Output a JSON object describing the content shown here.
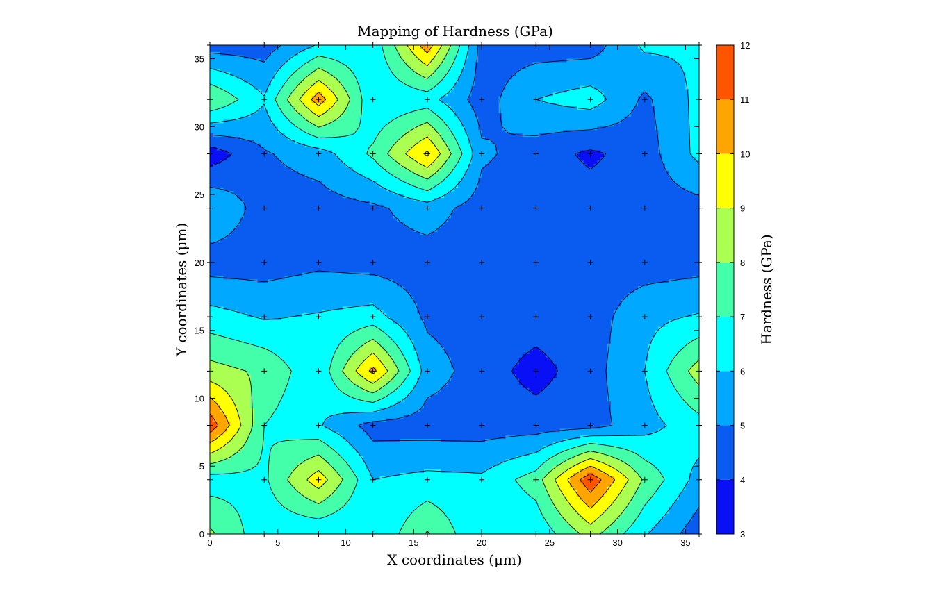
{
  "chart_data": {
    "type": "contour",
    "title": "Mapping of Hardness (GPa)",
    "xlabel": "X coordinates (μm)",
    "ylabel": "Y coordinates (μm)",
    "xlim": [
      0,
      36
    ],
    "ylim": [
      0,
      36
    ],
    "x_ticks": [
      0,
      5,
      10,
      15,
      20,
      25,
      30,
      35
    ],
    "y_ticks": [
      0,
      5,
      10,
      15,
      20,
      25,
      30,
      35
    ],
    "grid": false,
    "colorbar": {
      "label": "Hardness (GPa)",
      "range": [
        3,
        12
      ],
      "ticks": [
        3,
        4,
        5,
        6,
        7,
        8,
        9,
        10,
        11,
        12
      ],
      "levels": [
        3,
        4,
        5,
        6,
        7,
        8,
        9,
        10,
        11,
        12
      ],
      "colors": [
        "#0a10f5",
        "#0a5cf0",
        "#00a8ff",
        "#00ffff",
        "#44ffaa",
        "#aaff50",
        "#ffff00",
        "#ffa500",
        "#ff5500"
      ]
    },
    "x": [
      0,
      4,
      8,
      12,
      16,
      20,
      24,
      28,
      32,
      36
    ],
    "y": [
      0,
      4,
      8,
      12,
      16,
      20,
      24,
      28,
      32,
      36
    ],
    "z": [
      [
        8.2,
        6.3,
        6.0,
        6.0,
        8.1,
        6.0,
        6.2,
        8.4,
        6.1,
        4.4
      ],
      [
        6.5,
        6.8,
        9.6,
        6.0,
        6.3,
        6.2,
        7.5,
        11.8,
        7.8,
        5.6
      ],
      [
        11.7,
        7.0,
        6.1,
        4.6,
        4.5,
        4.5,
        4.5,
        4.6,
        5.6,
        6.6
      ],
      [
        8.4,
        7.8,
        6.2,
        10.3,
        5.5,
        4.5,
        3.6,
        4.6,
        6.0,
        8.5
      ],
      [
        6.4,
        5.9,
        6.1,
        6.4,
        4.8,
        4.5,
        4.5,
        4.5,
        5.7,
        6.1
      ],
      [
        4.5,
        4.5,
        4.8,
        4.6,
        4.5,
        4.5,
        4.4,
        4.5,
        4.5,
        4.6
      ],
      [
        6.0,
        4.5,
        4.5,
        4.8,
        5.5,
        4.5,
        4.5,
        4.5,
        4.5,
        4.6
      ],
      [
        3.4,
        4.9,
        5.5,
        7.2,
        10.2,
        5.2,
        4.5,
        3.8,
        4.5,
        6.3
      ],
      [
        8.0,
        6.1,
        10.6,
        6.1,
        6.4,
        4.5,
        6.0,
        6.5,
        4.8,
        6.3
      ],
      [
        4.5,
        4.5,
        6.1,
        6.3,
        10.6,
        4.6,
        4.5,
        4.5,
        6.2,
        6.1
      ]
    ]
  }
}
